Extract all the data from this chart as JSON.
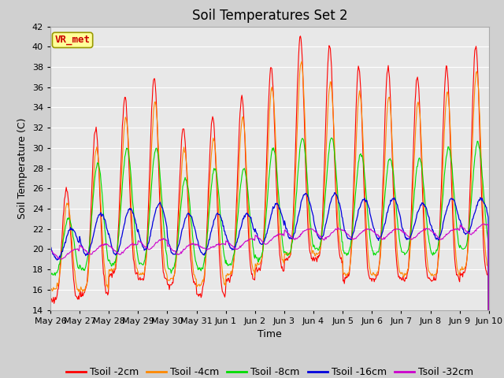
{
  "title": "Soil Temperatures Set 2",
  "xlabel": "Time",
  "ylabel": "Soil Temperature (C)",
  "ylim": [
    14,
    42
  ],
  "yticks": [
    14,
    16,
    18,
    20,
    22,
    24,
    26,
    28,
    30,
    32,
    34,
    36,
    38,
    40,
    42
  ],
  "date_labels": [
    "May 26",
    "May 27",
    "May 28",
    "May 29",
    "May 30",
    "May 31",
    "Jun 1",
    "Jun 2",
    "Jun 3",
    "Jun 4",
    "Jun 5",
    "Jun 6",
    "Jun 7",
    "Jun 8",
    "Jun 9",
    "Jun 10"
  ],
  "colors": {
    "Tsoil -2cm": "#ff0000",
    "Tsoil -4cm": "#ff8800",
    "Tsoil -8cm": "#00dd00",
    "Tsoil -16cm": "#0000dd",
    "Tsoil -32cm": "#cc00cc"
  },
  "annotation_text": "VR_met",
  "annotation_box_color": "#ffff99",
  "annotation_box_edge": "#999900",
  "annotation_text_color": "#cc0000",
  "background_color": "#e8e8e8",
  "grid_color": "#ffffff",
  "title_fontsize": 12,
  "axis_label_fontsize": 9,
  "tick_fontsize": 8,
  "legend_fontsize": 9,
  "n_points_per_day": 48
}
